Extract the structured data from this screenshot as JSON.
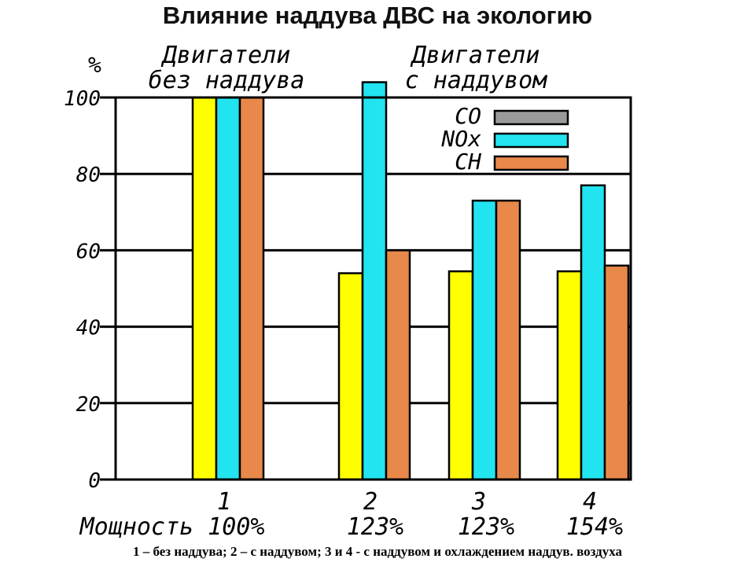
{
  "title": "Влияние наддува ДВС на экологию",
  "caption": "1 – без наддува; 2 – с наддувом; 3 и 4 - с наддувом и охлаждением наддув. воздуха",
  "colors": {
    "co": "#ffff00",
    "nox": "#22e4f0",
    "ch": "#e8884a",
    "legend_co": "#9a9a9a"
  },
  "chart_data": {
    "type": "bar",
    "ylabel": "%",
    "ylim": [
      0,
      100
    ],
    "yticks": [
      "0",
      "20",
      "40",
      "60",
      "80",
      "100"
    ],
    "grid": true,
    "legend_position": "top-right",
    "group_labels": [
      {
        "number": "1",
        "power": "Мощность 100%"
      },
      {
        "number": "2",
        "power": "123%"
      },
      {
        "number": "3",
        "power": "123%"
      },
      {
        "number": "4",
        "power": "154%"
      }
    ],
    "annotations": [
      {
        "line1": "Двигатели",
        "line2": "без наддува"
      },
      {
        "line1": "Двигатели",
        "line2": "с наддувом"
      }
    ],
    "series": [
      {
        "name": "CO",
        "values": [
          100,
          54,
          54.5,
          54.5
        ]
      },
      {
        "name": "NOx",
        "values": [
          100,
          104,
          73,
          77
        ]
      },
      {
        "name": "CH",
        "values": [
          100,
          60,
          73,
          56
        ]
      }
    ]
  }
}
